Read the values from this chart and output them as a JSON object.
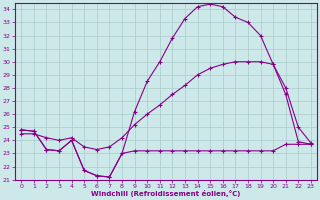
{
  "xlabel": "Windchill (Refroidissement éolien,°C)",
  "bg_color": "#cce8e8",
  "line_color": "#880088",
  "grid_color": "#aacccc",
  "xlim": [
    -0.5,
    23.5
  ],
  "ylim": [
    21,
    34.5
  ],
  "yticks": [
    21,
    22,
    23,
    24,
    25,
    26,
    27,
    28,
    29,
    30,
    31,
    32,
    33,
    34
  ],
  "xticks": [
    0,
    1,
    2,
    3,
    4,
    5,
    6,
    7,
    8,
    9,
    10,
    11,
    12,
    13,
    14,
    15,
    16,
    17,
    18,
    19,
    20,
    21,
    22,
    23
  ],
  "line1_x": [
    0,
    1,
    2,
    3,
    4,
    5,
    6,
    7,
    8,
    9,
    10,
    11,
    12,
    13,
    14,
    15,
    16,
    17,
    18,
    19,
    20,
    21,
    22,
    23
  ],
  "line1_y": [
    24.8,
    24.7,
    23.3,
    23.2,
    24.0,
    21.7,
    21.3,
    21.2,
    23.0,
    26.2,
    28.5,
    30.0,
    31.8,
    33.3,
    34.2,
    34.4,
    34.2,
    33.4,
    33.0,
    32.0,
    29.8,
    27.5,
    23.9,
    23.7
  ],
  "line2_x": [
    0,
    1,
    2,
    3,
    4,
    5,
    6,
    7,
    8,
    9,
    10,
    11,
    12,
    13,
    14,
    15,
    16,
    17,
    18,
    19,
    20,
    21,
    22,
    23
  ],
  "line2_y": [
    24.8,
    24.7,
    23.3,
    23.2,
    24.0,
    21.7,
    21.3,
    21.2,
    23.0,
    23.2,
    23.2,
    23.2,
    23.2,
    23.2,
    23.2,
    23.2,
    23.2,
    23.2,
    23.2,
    23.2,
    23.2,
    23.7,
    23.7,
    23.7
  ],
  "line3_x": [
    0,
    1,
    2,
    3,
    4,
    5,
    6,
    7,
    8,
    9,
    10,
    11,
    12,
    13,
    14,
    15,
    16,
    17,
    18,
    19,
    20,
    21,
    22,
    23
  ],
  "line3_y": [
    24.5,
    24.5,
    24.2,
    24.0,
    24.2,
    23.5,
    23.3,
    23.5,
    24.2,
    25.2,
    26.0,
    26.7,
    27.5,
    28.2,
    29.0,
    29.5,
    29.8,
    30.0,
    30.0,
    30.0,
    29.8,
    28.0,
    25.0,
    23.8
  ]
}
